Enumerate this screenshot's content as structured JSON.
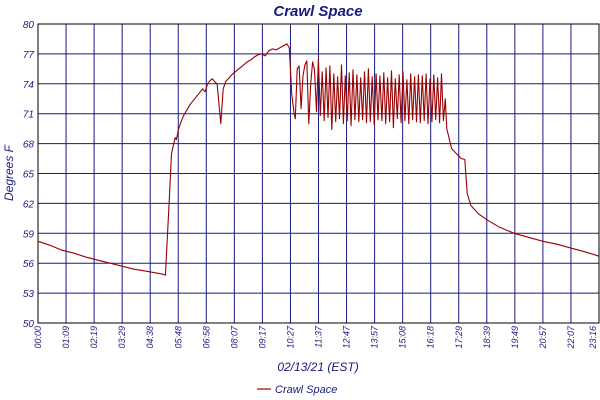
{
  "chart_data": {
    "type": "line",
    "title": "Crawl Space",
    "xlabel": "02/13/21 (EST)",
    "ylabel": "Degrees F",
    "ylim": [
      50,
      80
    ],
    "yticks": [
      "50",
      "53",
      "56",
      "59",
      "62",
      "65",
      "68",
      "71",
      "74",
      "77",
      "80"
    ],
    "xticks": [
      "00:00",
      "01:09",
      "02:19",
      "03:29",
      "04:38",
      "05:48",
      "06:58",
      "08:07",
      "09:17",
      "10:27",
      "11:37",
      "12:47",
      "13:57",
      "15:08",
      "16:18",
      "17:29",
      "18:39",
      "19:49",
      "20:57",
      "22:07",
      "23:16"
    ],
    "xlim_hours": [
      0,
      23.33
    ],
    "grid": true,
    "legend_position": "bottom",
    "colors": {
      "series": "#990000",
      "grid": "#1a1a80",
      "text": "#1a1a80",
      "frame": "#000000"
    },
    "series": [
      {
        "name": "Crawl Space",
        "x_hours": [
          0,
          0.5,
          1,
          1.5,
          2,
          2.5,
          3,
          3.5,
          4,
          4.5,
          5.2,
          5.3,
          5.45,
          5.55,
          5.7,
          5.75,
          5.85,
          5.95,
          6.05,
          6.15,
          6.25,
          6.35,
          6.45,
          6.55,
          6.65,
          6.75,
          6.85,
          6.95,
          7.05,
          7.15,
          7.25,
          7.35,
          7.45,
          7.6,
          7.7,
          7.8,
          7.95,
          8.1,
          8.25,
          8.4,
          8.55,
          8.7,
          8.85,
          9.0,
          9.15,
          9.3,
          9.45,
          9.6,
          9.75,
          9.9,
          10.05,
          10.2,
          10.35,
          10.45,
          10.55,
          10.65,
          10.7,
          10.78,
          10.86,
          10.94,
          11.02,
          11.1,
          11.18,
          11.26,
          11.34,
          11.42,
          11.5,
          11.58,
          11.66,
          11.74,
          11.82,
          11.9,
          11.98,
          12.06,
          12.14,
          12.22,
          12.3,
          12.38,
          12.46,
          12.54,
          12.62,
          12.7,
          12.78,
          12.86,
          12.94,
          13.02,
          13.1,
          13.18,
          13.26,
          13.34,
          13.42,
          13.5,
          13.58,
          13.66,
          13.74,
          13.82,
          13.9,
          13.98,
          14.06,
          14.14,
          14.22,
          14.3,
          14.38,
          14.46,
          14.54,
          14.62,
          14.7,
          14.78,
          14.86,
          14.94,
          15.02,
          15.1,
          15.18,
          15.26,
          15.34,
          15.42,
          15.5,
          15.58,
          15.66,
          15.74,
          15.82,
          15.9,
          15.98,
          16.06,
          16.14,
          16.22,
          16.3,
          16.38,
          16.46,
          16.54,
          16.62,
          16.7,
          16.78,
          16.86,
          16.94,
          17.0,
          17.2,
          17.4,
          17.6,
          17.75,
          17.85,
          18.0,
          18.3,
          18.7,
          19.2,
          19.8,
          20.4,
          21.0,
          21.6,
          22.2,
          22.8,
          23.33
        ],
        "values": [
          58.2,
          57.8,
          57.3,
          57.0,
          56.6,
          56.3,
          56.0,
          55.7,
          55.4,
          55.2,
          54.9,
          54.8,
          62.0,
          67.0,
          68.6,
          68.4,
          69.5,
          70.2,
          70.8,
          71.2,
          71.6,
          72.0,
          72.3,
          72.6,
          72.9,
          73.2,
          73.5,
          73.2,
          74.0,
          74.3,
          74.5,
          74.2,
          74.0,
          70.0,
          73.5,
          74.2,
          74.6,
          75.0,
          75.3,
          75.6,
          75.9,
          76.2,
          76.4,
          76.7,
          76.9,
          77.0,
          76.8,
          77.3,
          77.5,
          77.4,
          77.6,
          77.8,
          78.0,
          77.6,
          73.0,
          71.0,
          70.5,
          75.5,
          75.8,
          71.5,
          74.8,
          75.9,
          76.3,
          70.0,
          74.0,
          76.2,
          75.4,
          71.2,
          76.5,
          70.8,
          75.2,
          70.3,
          75.6,
          70.6,
          75.8,
          69.4,
          75.0,
          70.2,
          74.7,
          70.5,
          75.9,
          70.0,
          74.8,
          70.3,
          75.1,
          69.8,
          75.4,
          70.4,
          74.9,
          70.2,
          74.6,
          70.4,
          75.2,
          70.1,
          75.5,
          70.2,
          74.7,
          69.9,
          75.0,
          70.4,
          74.8,
          70.3,
          75.1,
          70.0,
          74.6,
          70.2,
          75.3,
          69.6,
          74.5,
          70.5,
          74.9,
          70.1,
          75.2,
          70.3,
          74.4,
          70.0,
          75.0,
          70.4,
          74.7,
          70.2,
          74.9,
          70.1,
          74.8,
          70.3,
          75.0,
          70.0,
          74.5,
          70.2,
          74.9,
          70.4,
          74.6,
          70.1,
          75.0,
          70.3,
          72.5,
          69.5,
          67.5,
          67.0,
          66.5,
          66.4,
          63.0,
          61.8,
          61.0,
          60.3,
          59.6,
          59.0,
          58.6,
          58.2,
          57.9,
          57.5,
          57.1,
          56.7
        ]
      }
    ]
  }
}
